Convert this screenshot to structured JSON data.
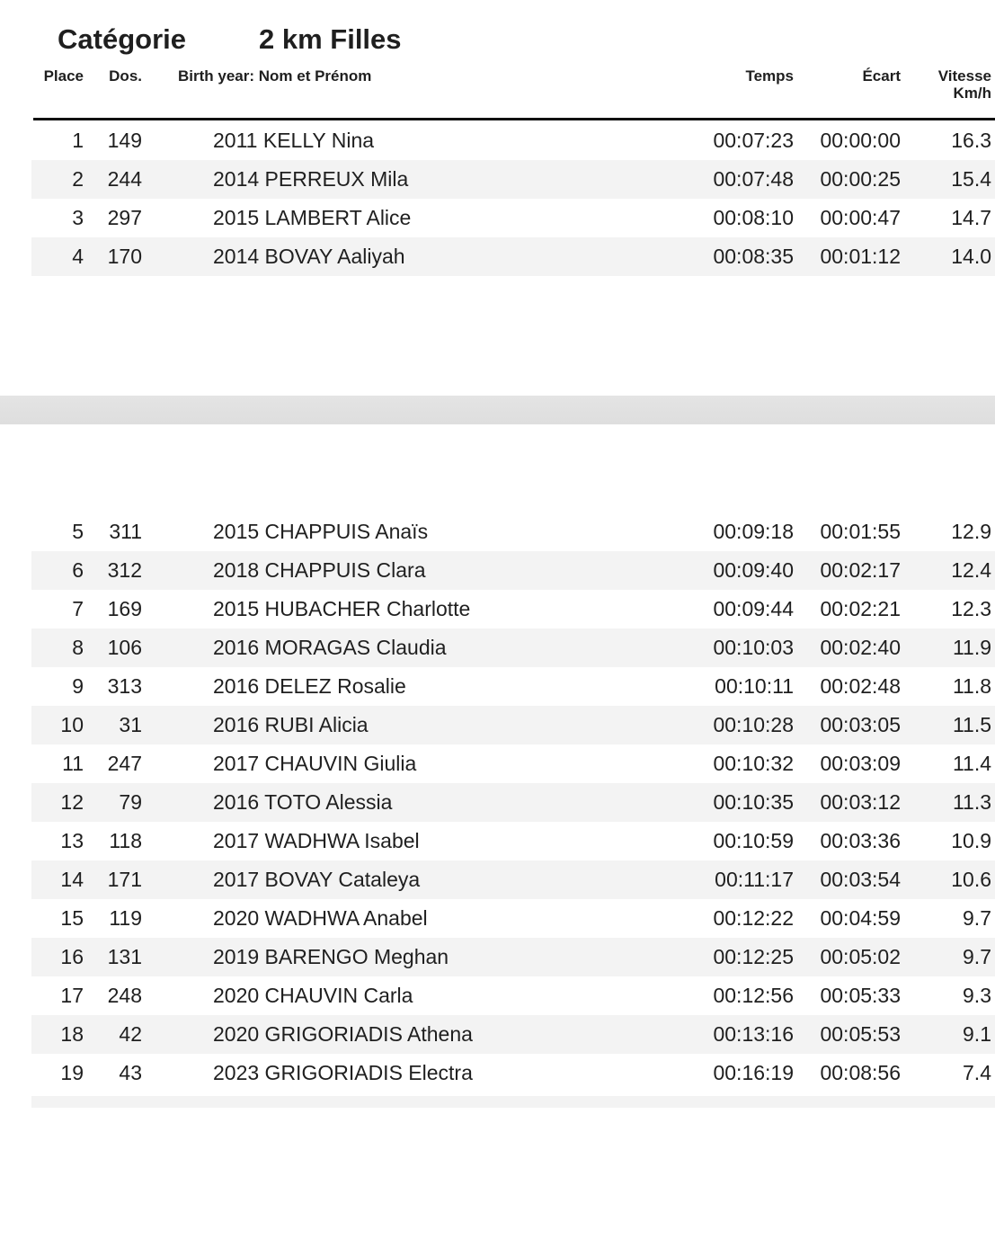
{
  "header": {
    "category_label": "Catégorie",
    "category_value": "2 km Filles"
  },
  "table": {
    "columns": {
      "place": "Place",
      "bib": "Dos.",
      "name": "Birth year: Nom et Prénom",
      "time": "Temps",
      "gap": "Écart",
      "speed_line1": "Vitesse",
      "speed_line2": "Km/h"
    },
    "rows_top": [
      {
        "place": "1",
        "bib": "149",
        "birth_year": "2011",
        "name": "KELLY Nina",
        "time": "00:07:23",
        "gap": "00:00:00",
        "speed": "16.3"
      },
      {
        "place": "2",
        "bib": "244",
        "birth_year": "2014",
        "name": "PERREUX Mila",
        "time": "00:07:48",
        "gap": "00:00:25",
        "speed": "15.4"
      },
      {
        "place": "3",
        "bib": "297",
        "birth_year": "2015",
        "name": "LAMBERT Alice",
        "time": "00:08:10",
        "gap": "00:00:47",
        "speed": "14.7"
      },
      {
        "place": "4",
        "bib": "170",
        "birth_year": "2014",
        "name": "BOVAY Aaliyah",
        "time": "00:08:35",
        "gap": "00:01:12",
        "speed": "14.0"
      }
    ],
    "rows_bottom": [
      {
        "place": "5",
        "bib": "311",
        "birth_year": "2015",
        "name": "CHAPPUIS Anaïs",
        "time": "00:09:18",
        "gap": "00:01:55",
        "speed": "12.9"
      },
      {
        "place": "6",
        "bib": "312",
        "birth_year": "2018",
        "name": "CHAPPUIS Clara",
        "time": "00:09:40",
        "gap": "00:02:17",
        "speed": "12.4"
      },
      {
        "place": "7",
        "bib": "169",
        "birth_year": "2015",
        "name": "HUBACHER Charlotte",
        "time": "00:09:44",
        "gap": "00:02:21",
        "speed": "12.3"
      },
      {
        "place": "8",
        "bib": "106",
        "birth_year": "2016",
        "name": "MORAGAS Claudia",
        "time": "00:10:03",
        "gap": "00:02:40",
        "speed": "11.9"
      },
      {
        "place": "9",
        "bib": "313",
        "birth_year": "2016",
        "name": "DELEZ Rosalie",
        "time": "00:10:11",
        "gap": "00:02:48",
        "speed": "11.8"
      },
      {
        "place": "10",
        "bib": "31",
        "birth_year": "2016",
        "name": "RUBI Alicia",
        "time": "00:10:28",
        "gap": "00:03:05",
        "speed": "11.5"
      },
      {
        "place": "11",
        "bib": "247",
        "birth_year": "2017",
        "name": "CHAUVIN Giulia",
        "time": "00:10:32",
        "gap": "00:03:09",
        "speed": "11.4"
      },
      {
        "place": "12",
        "bib": "79",
        "birth_year": "2016",
        "name": "TOTO Alessia",
        "time": "00:10:35",
        "gap": "00:03:12",
        "speed": "11.3"
      },
      {
        "place": "13",
        "bib": "118",
        "birth_year": "2017",
        "name": "WADHWA Isabel",
        "time": "00:10:59",
        "gap": "00:03:36",
        "speed": "10.9"
      },
      {
        "place": "14",
        "bib": "171",
        "birth_year": "2017",
        "name": "BOVAY Cataleya",
        "time": "00:11:17",
        "gap": "00:03:54",
        "speed": "10.6"
      },
      {
        "place": "15",
        "bib": "119",
        "birth_year": "2020",
        "name": "WADHWA Anabel",
        "time": "00:12:22",
        "gap": "00:04:59",
        "speed": "9.7"
      },
      {
        "place": "16",
        "bib": "131",
        "birth_year": "2019",
        "name": "BARENGO Meghan",
        "time": "00:12:25",
        "gap": "00:05:02",
        "speed": "9.7"
      },
      {
        "place": "17",
        "bib": "248",
        "birth_year": "2020",
        "name": "CHAUVIN Carla",
        "time": "00:12:56",
        "gap": "00:05:33",
        "speed": "9.3"
      },
      {
        "place": "18",
        "bib": "42",
        "birth_year": "2020",
        "name": "GRIGORIADIS Athena",
        "time": "00:13:16",
        "gap": "00:05:53",
        "speed": "9.1"
      },
      {
        "place": "19",
        "bib": "43",
        "birth_year": "2023",
        "name": "GRIGORIADIS Electra",
        "time": "00:16:19",
        "gap": "00:08:56",
        "speed": "7.4"
      }
    ]
  },
  "colors": {
    "stripe": "#f3f3f3",
    "page_separator": "#e1e1e1",
    "rule": "#111111",
    "text": "#1f1f1f"
  }
}
